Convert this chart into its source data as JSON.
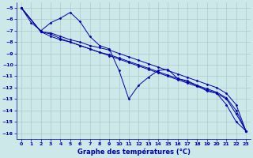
{
  "title": "Graphe des températures (°C)",
  "bg_color": "#cce8e8",
  "grid_color": "#aacccc",
  "line_color": "#0000aa",
  "xlim": [
    -0.5,
    23.5
  ],
  "ylim": [
    -16.5,
    -4.5
  ],
  "xticks": [
    0,
    1,
    2,
    3,
    4,
    5,
    6,
    7,
    8,
    9,
    10,
    11,
    12,
    13,
    14,
    15,
    16,
    17,
    18,
    19,
    20,
    21,
    22,
    23
  ],
  "yticks": [
    -5,
    -6,
    -7,
    -8,
    -9,
    -10,
    -11,
    -12,
    -13,
    -14,
    -15,
    -16
  ],
  "series1_x": [
    0,
    1,
    2,
    3,
    4,
    5,
    6,
    7,
    8,
    9,
    10,
    11,
    12,
    13,
    14,
    15,
    16,
    17,
    18,
    19,
    20,
    21,
    22,
    23
  ],
  "series1_y": [
    -5.0,
    -6.3,
    -7.0,
    -6.3,
    -5.9,
    -5.4,
    -6.2,
    -7.5,
    -8.3,
    -8.6,
    -10.5,
    -13.0,
    -11.8,
    -11.1,
    -10.5,
    -10.4,
    -11.2,
    -11.4,
    -11.8,
    -12.3,
    -12.5,
    -13.5,
    -15.0,
    -15.8
  ],
  "series2_x": [
    0,
    2,
    3,
    4,
    5,
    6,
    7,
    8,
    9,
    10,
    11,
    12,
    13,
    14,
    15,
    16,
    17,
    18,
    19,
    20,
    21,
    22,
    23
  ],
  "series2_y": [
    -5.0,
    -7.1,
    -7.5,
    -7.8,
    -8.0,
    -8.3,
    -8.6,
    -8.9,
    -9.1,
    -9.4,
    -9.7,
    -10.0,
    -10.3,
    -10.6,
    -10.9,
    -11.2,
    -11.5,
    -11.8,
    -12.1,
    -12.4,
    -12.9,
    -14.0,
    -15.8
  ],
  "series3_x": [
    0,
    2,
    3,
    4,
    5,
    6,
    7,
    8,
    9,
    10,
    11,
    12,
    13,
    14,
    15,
    16,
    17,
    18,
    19,
    20,
    21,
    22,
    23
  ],
  "series3_y": [
    -5.0,
    -7.1,
    -7.3,
    -7.7,
    -8.0,
    -8.3,
    -8.6,
    -8.9,
    -9.2,
    -9.5,
    -9.8,
    -10.1,
    -10.4,
    -10.7,
    -11.0,
    -11.3,
    -11.6,
    -11.9,
    -12.2,
    -12.5,
    -13.0,
    -14.3,
    -15.8
  ],
  "series4_x": [
    0,
    2,
    3,
    4,
    5,
    6,
    7,
    8,
    9,
    10,
    11,
    12,
    13,
    14,
    15,
    16,
    17,
    18,
    19,
    20,
    21,
    22,
    23
  ],
  "series4_y": [
    -5.0,
    -7.1,
    -7.2,
    -7.5,
    -7.8,
    -8.0,
    -8.3,
    -8.5,
    -8.7,
    -9.0,
    -9.3,
    -9.6,
    -9.9,
    -10.2,
    -10.5,
    -10.8,
    -11.1,
    -11.4,
    -11.7,
    -12.0,
    -12.5,
    -13.5,
    -15.8
  ]
}
